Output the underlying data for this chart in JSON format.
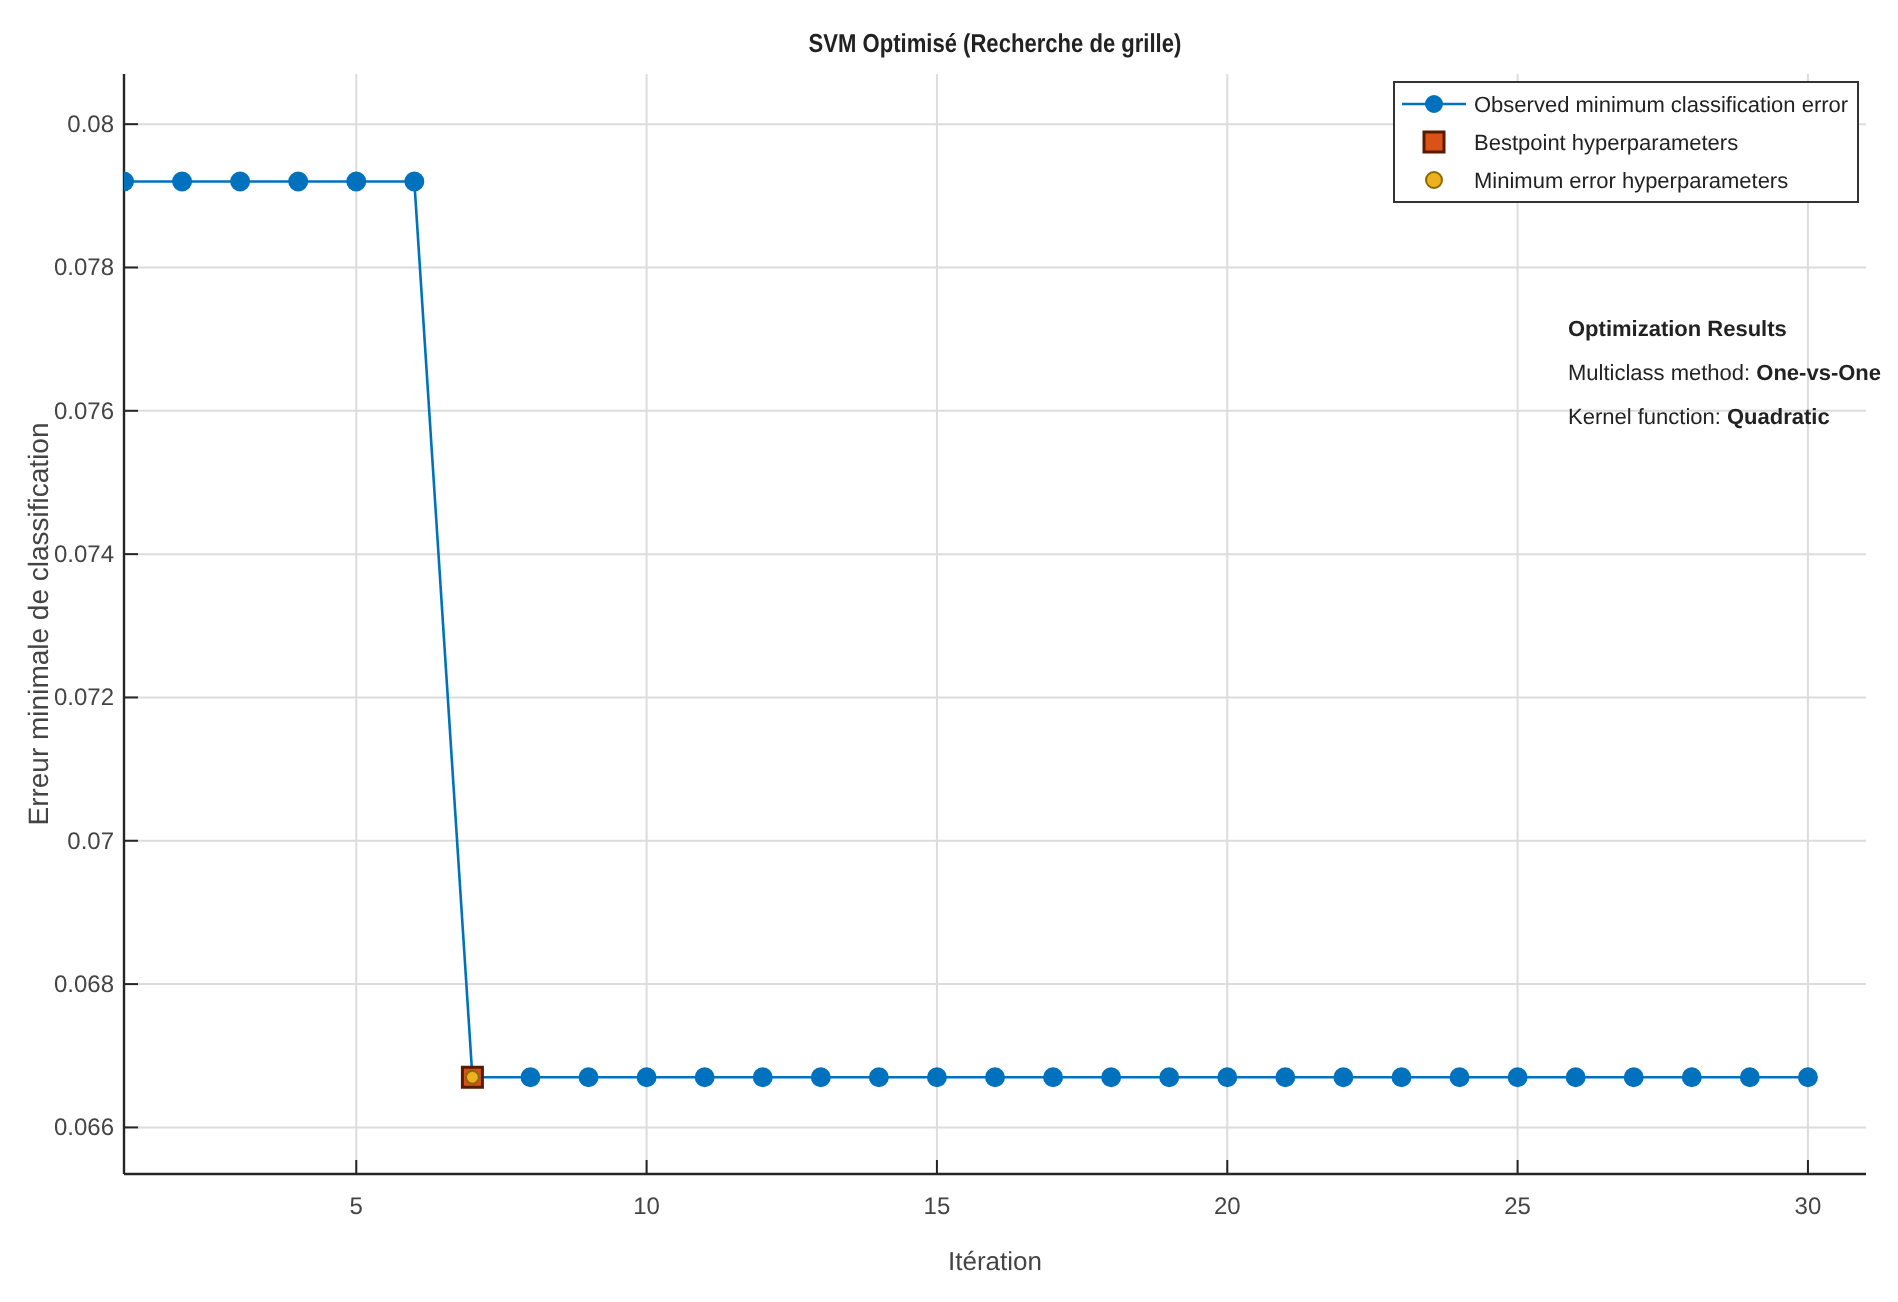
{
  "chart_data": {
    "type": "line",
    "title": "SVM Optimisé (Recherche de grille)",
    "xlabel": "Itération",
    "ylabel": "Erreur minimale de classification",
    "xlim": [
      1,
      31
    ],
    "xticks": [
      5,
      10,
      15,
      20,
      25,
      30
    ],
    "ylim": [
      0.06535,
      0.0807
    ],
    "yticks": [
      0.066,
      0.068,
      0.07,
      0.072,
      0.074,
      0.076,
      0.078,
      0.08
    ],
    "grid": true,
    "legend": "top right",
    "series": [
      {
        "name": "Observed minimum classification error",
        "color": "#0072bd",
        "marker": "circle",
        "x": [
          1,
          2,
          3,
          4,
          5,
          6,
          7,
          8,
          9,
          10,
          11,
          12,
          13,
          14,
          15,
          16,
          17,
          18,
          19,
          20,
          21,
          22,
          23,
          24,
          25,
          26,
          27,
          28,
          29,
          30
        ],
        "values": [
          0.0792,
          0.0792,
          0.0792,
          0.0792,
          0.0792,
          0.0792,
          0.0667,
          0.0667,
          0.0667,
          0.0667,
          0.0667,
          0.0667,
          0.0667,
          0.0667,
          0.0667,
          0.0667,
          0.0667,
          0.0667,
          0.0667,
          0.0667,
          0.0667,
          0.0667,
          0.0667,
          0.0667,
          0.0667,
          0.0667,
          0.0667,
          0.0667,
          0.0667,
          0.0667
        ]
      },
      {
        "name": "Bestpoint hyperparameters",
        "type": "scatter",
        "color": "#d95319",
        "marker": "square",
        "x": [
          7
        ],
        "values": [
          0.0667
        ]
      },
      {
        "name": "Minimum error hyperparameters",
        "type": "scatter",
        "color": "#edb120",
        "marker": "circle",
        "x": [
          7
        ],
        "values": [
          0.0667
        ]
      }
    ],
    "annotations": [
      "Optimization Results",
      "Multiclass method: One-vs-One",
      "Kernel function: Quadratic"
    ]
  }
}
